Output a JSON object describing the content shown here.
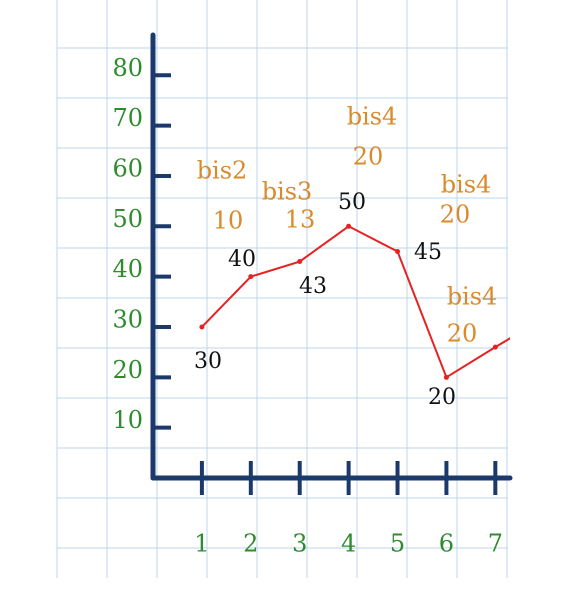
{
  "chart_data": {
    "type": "line",
    "x": [
      1,
      2,
      3,
      4,
      5,
      6,
      7
    ],
    "series": [
      {
        "color": "#e52222",
        "values": [
          30,
          40,
          43,
          50,
          45,
          20,
          26
        ]
      }
    ],
    "xlim": [
      0,
      7.3
    ],
    "xticks": [
      1,
      2,
      3,
      4,
      5,
      6,
      7
    ],
    "ylim": [
      0,
      88
    ],
    "yticks": [
      10,
      20,
      30,
      40,
      50,
      60,
      70,
      80
    ],
    "axis_color": "#1b3a6b",
    "annotations": [
      {
        "name": "bis2",
        "value": "10"
      },
      {
        "name": "bis3",
        "value": "13"
      },
      {
        "name": "bis4",
        "value": "20"
      },
      {
        "name": "bis4",
        "value": "20"
      },
      {
        "name": "bis4",
        "value": "20"
      }
    ]
  }
}
